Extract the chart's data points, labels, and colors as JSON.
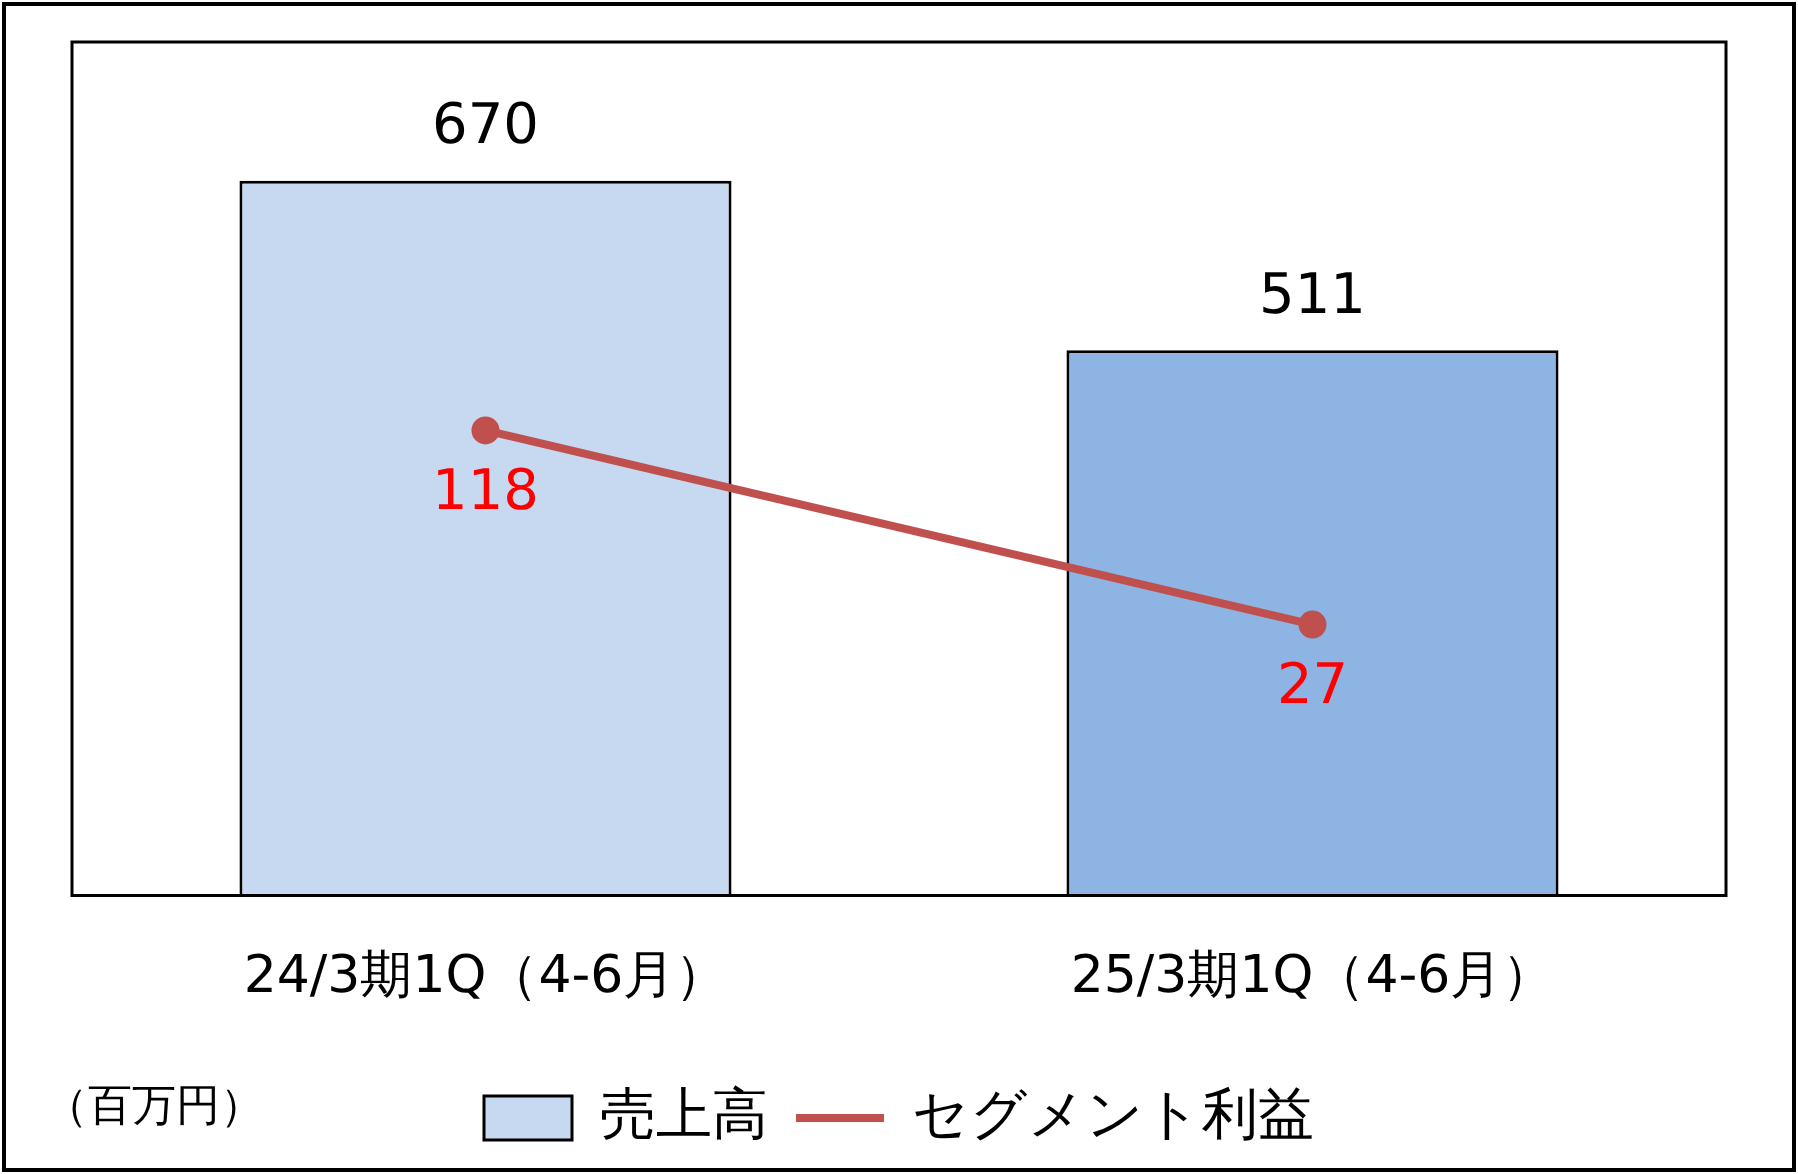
{
  "chart_data": {
    "type": "bar",
    "categories": [
      "24/3期1Q（4-6月）",
      "25/3期1Q（4-6月）"
    ],
    "series": [
      {
        "name": "売上高",
        "colors": [
          "#c6d9f1",
          "#8eb4e3"
        ],
        "color": "#c6d9f1",
        "values": [
          670,
          511
        ]
      },
      {
        "name": "セグメント利益",
        "type": "line",
        "axis": "y2",
        "color": "#c0504d",
        "values": [
          118,
          27
        ]
      }
    ],
    "ylim": [
      0,
      800
    ],
    "y2lim": [
      -100,
      300
    ],
    "tick_labels": "x",
    "data_labels": true,
    "legend": "bottom",
    "marker": "circle",
    "line_style": "solid",
    "grid": false,
    "annotations": [
      "（百万円）"
    ]
  }
}
